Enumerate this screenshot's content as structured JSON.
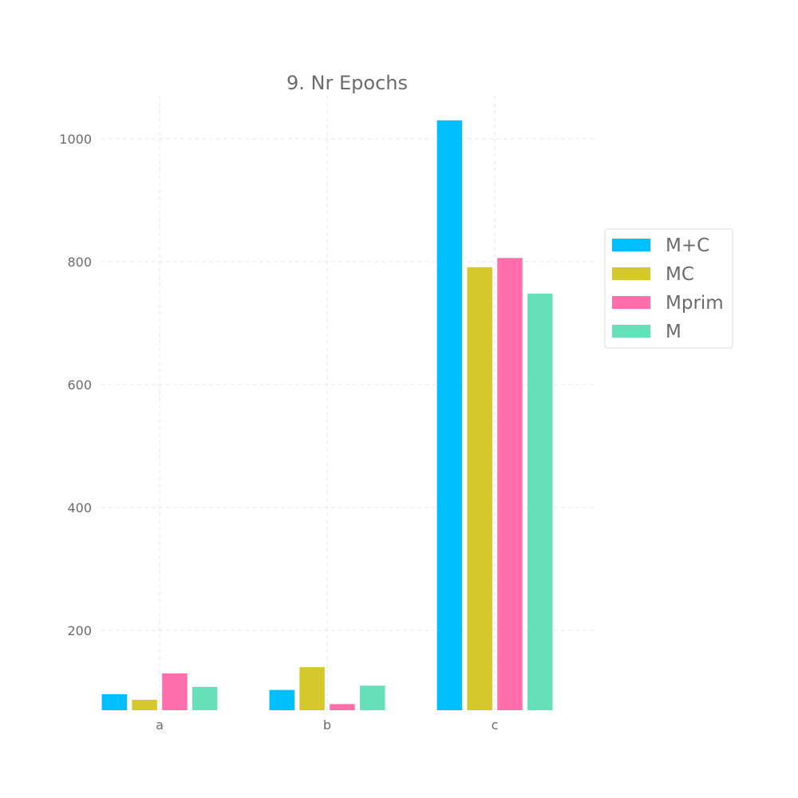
{
  "chart_data": {
    "type": "bar",
    "title": "9. Nr Epochs",
    "xlabel": "",
    "ylabel": "",
    "categories": [
      "a",
      "b",
      "c"
    ],
    "ylim": [
      70,
      1070
    ],
    "yticks": [
      200,
      400,
      600,
      800,
      1000
    ],
    "grid": true,
    "legend_position": "right",
    "series": [
      {
        "name": "M+C",
        "color": "#00bfff",
        "values": [
          96,
          103,
          1030
        ]
      },
      {
        "name": "MC",
        "color": "#d4c82c",
        "values": [
          87,
          140,
          791
        ]
      },
      {
        "name": "Mprim",
        "color": "#ff6eab",
        "values": [
          130,
          80,
          806
        ]
      },
      {
        "name": "M",
        "color": "#66e0b8",
        "values": [
          108,
          110,
          748
        ]
      }
    ]
  }
}
